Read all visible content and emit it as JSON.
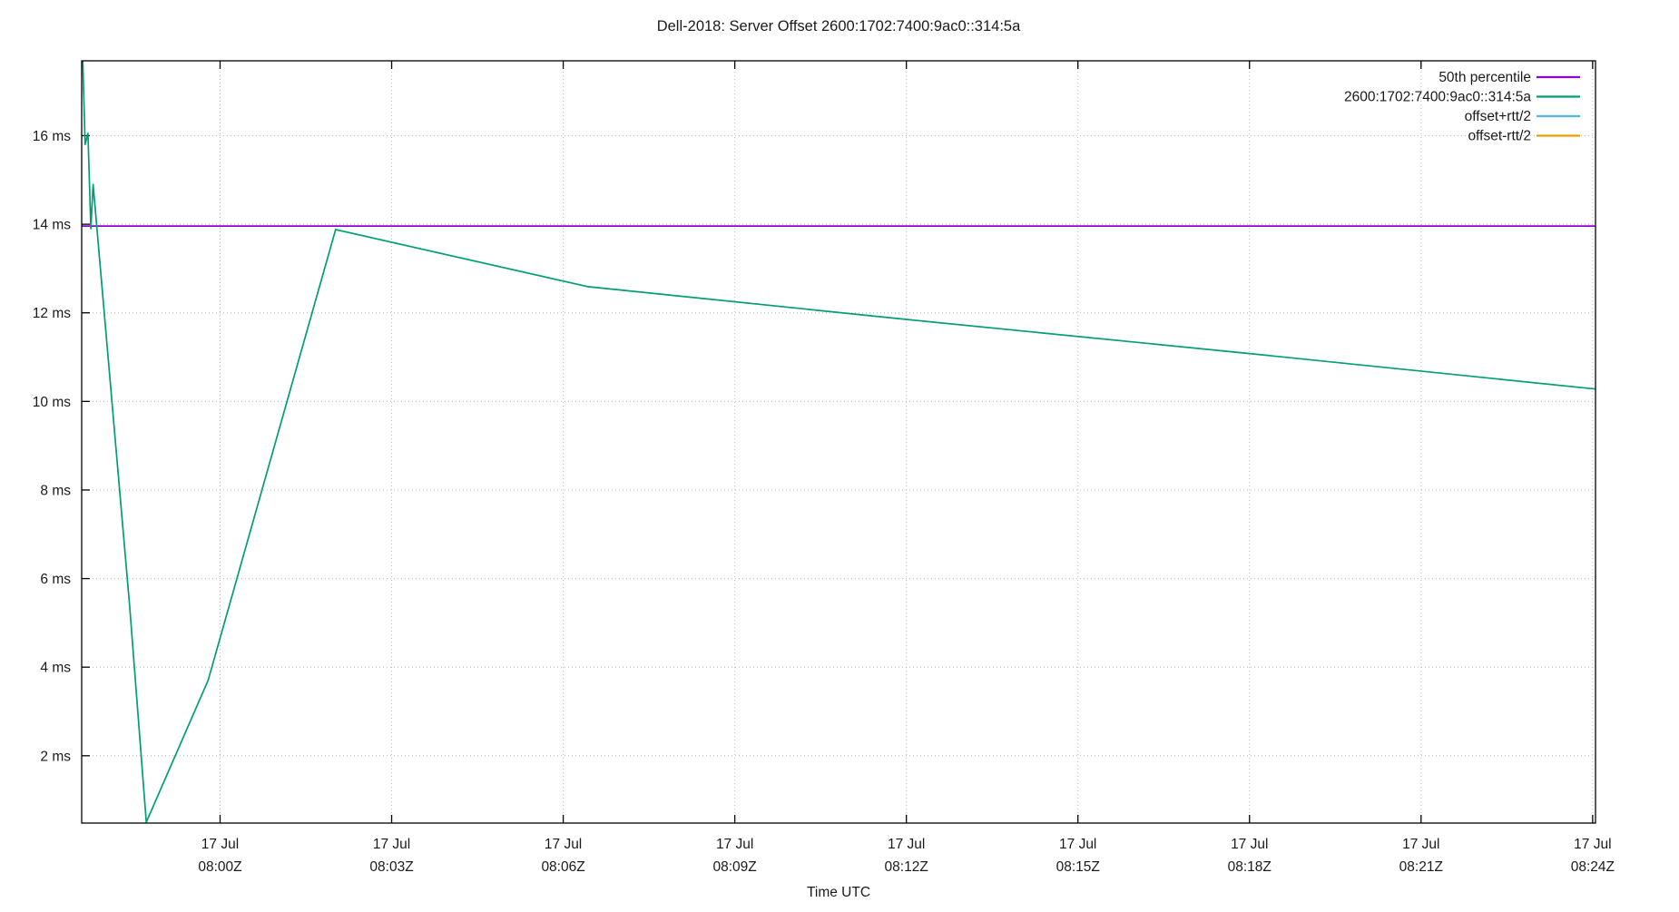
{
  "chart_data": {
    "type": "line",
    "title": "Dell-2018: Server Offset 2600:1702:7400:9ac0::314:5a",
    "xlabel": "Time UTC",
    "ylabel": "",
    "x_unit": "minutes after 08:00Z, 17 Jul",
    "y_unit": "ms",
    "xlim": [
      -2.42,
      24.05
    ],
    "ylim": [
      0.48,
      17.69
    ],
    "grid": true,
    "legend_position": "top-right",
    "x_ticks": [
      {
        "t": 0,
        "date": "17 Jul",
        "time": "08:00Z"
      },
      {
        "t": 3,
        "date": "17 Jul",
        "time": "08:03Z"
      },
      {
        "t": 6,
        "date": "17 Jul",
        "time": "08:06Z"
      },
      {
        "t": 9,
        "date": "17 Jul",
        "time": "08:09Z"
      },
      {
        "t": 12,
        "date": "17 Jul",
        "time": "08:12Z"
      },
      {
        "t": 15,
        "date": "17 Jul",
        "time": "08:15Z"
      },
      {
        "t": 18,
        "date": "17 Jul",
        "time": "08:18Z"
      },
      {
        "t": 21,
        "date": "17 Jul",
        "time": "08:21Z"
      },
      {
        "t": 24,
        "date": "17 Jul",
        "time": "08:24Z"
      }
    ],
    "y_ticks": [
      {
        "v": 2,
        "label": "2 ms"
      },
      {
        "v": 4,
        "label": "4 ms"
      },
      {
        "v": 6,
        "label": "6 ms"
      },
      {
        "v": 8,
        "label": "8 ms"
      },
      {
        "v": 10,
        "label": "10 ms"
      },
      {
        "v": 12,
        "label": "12 ms"
      },
      {
        "v": 14,
        "label": "14 ms"
      },
      {
        "v": 16,
        "label": "16 ms"
      }
    ],
    "series": [
      {
        "key": "percentile-50",
        "name": "50th percentile",
        "color": "#9400d3",
        "points": [
          [
            -2.42,
            13.96
          ],
          [
            24.05,
            13.96
          ]
        ]
      },
      {
        "key": "server-offset",
        "name": "2600:1702:7400:9ac0::314:5a",
        "color": "#009e73",
        "points": [
          [
            -2.42,
            18.6
          ],
          [
            -2.36,
            15.8
          ],
          [
            -2.31,
            16.05
          ],
          [
            -2.26,
            13.9
          ],
          [
            -2.22,
            14.9
          ],
          [
            -1.58,
            5.37
          ],
          [
            -1.29,
            0.5
          ],
          [
            -0.21,
            3.7
          ],
          [
            2.02,
            13.88
          ],
          [
            6.43,
            12.59
          ],
          [
            12.0,
            11.85
          ],
          [
            18.0,
            11.08
          ],
          [
            24.05,
            10.28
          ]
        ]
      },
      {
        "key": "offset-plus-rtt2",
        "name": "offset+rtt/2",
        "color": "#56b4e9",
        "points": []
      },
      {
        "key": "offset-minus-rtt2",
        "name": "offset-rtt/2",
        "color": "#e69f00",
        "points": []
      }
    ]
  }
}
